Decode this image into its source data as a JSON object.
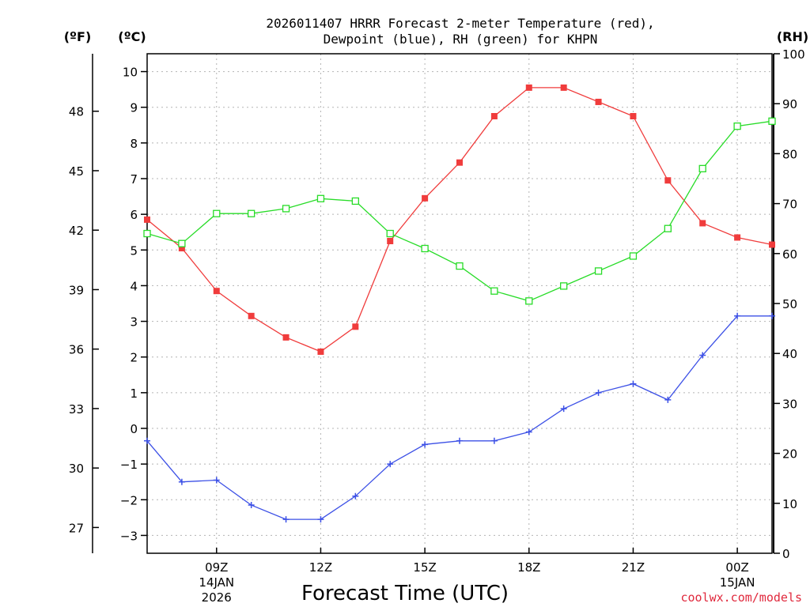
{
  "chart_data": {
    "type": "line",
    "title_line1": "2026011407 HRRR Forecast 2-meter Temperature (red),",
    "title_line2": "Dewpoint (blue), RH (green) for KHPN",
    "xlabel": "Forecast Time (UTC)",
    "credit": "coolwx.com/models",
    "unit_f": "(ºF)",
    "unit_c": "(ºC)",
    "unit_rh": "(RH)",
    "x_hours": [
      7,
      8,
      9,
      10,
      11,
      12,
      13,
      14,
      15,
      16,
      17,
      18,
      19,
      20,
      21,
      22,
      23,
      24,
      25
    ],
    "x_ticks": [
      {
        "hour": 9,
        "label": "09Z",
        "sub1": "14JAN",
        "sub2": "2026"
      },
      {
        "hour": 12,
        "label": "12Z",
        "sub1": "",
        "sub2": ""
      },
      {
        "hour": 15,
        "label": "15Z",
        "sub1": "",
        "sub2": ""
      },
      {
        "hour": 18,
        "label": "18Z",
        "sub1": "",
        "sub2": ""
      },
      {
        "hour": 21,
        "label": "21Z",
        "sub1": "",
        "sub2": ""
      },
      {
        "hour": 24,
        "label": "00Z",
        "sub1": "15JAN",
        "sub2": ""
      }
    ],
    "xlim": [
      7,
      25
    ],
    "c_range": [
      -3.5,
      10.5
    ],
    "c_ticks": [
      "10",
      "9",
      "8",
      "7",
      "6",
      "5",
      "4",
      "3",
      "2",
      "1",
      "0",
      "−1",
      "−2",
      "−3"
    ],
    "c_tick_values": [
      10,
      9,
      8,
      7,
      6,
      5,
      4,
      3,
      2,
      1,
      0,
      -1,
      -2,
      -3
    ],
    "f_ticks": [
      "48",
      "45",
      "42",
      "39",
      "36",
      "33",
      "30",
      "27"
    ],
    "f_tick_values": [
      48,
      45,
      42,
      39,
      36,
      33,
      30,
      27
    ],
    "rh_range": [
      0,
      100
    ],
    "rh_ticks": [
      "100",
      "90",
      "80",
      "70",
      "60",
      "50",
      "40",
      "30",
      "20",
      "10",
      "0"
    ],
    "rh_tick_values": [
      100,
      90,
      80,
      70,
      60,
      50,
      40,
      30,
      20,
      10,
      0
    ],
    "series": [
      {
        "name": "Temperature",
        "color": "#f03c3c",
        "marker": "filled-square",
        "values": [
          5.85,
          5.05,
          3.85,
          3.15,
          2.55,
          2.15,
          2.85,
          5.25,
          6.45,
          7.45,
          8.75,
          9.55,
          9.55,
          9.15,
          8.75,
          6.95,
          5.75,
          5.35,
          5.15
        ]
      },
      {
        "name": "Dewpoint",
        "color": "#3c50e6",
        "marker": "plus",
        "values": [
          -0.35,
          -1.5,
          -1.45,
          -2.15,
          -2.55,
          -2.55,
          -1.9,
          -1.0,
          -0.45,
          -0.35,
          -0.35,
          -0.1,
          0.55,
          1.0,
          1.25,
          0.8,
          2.05,
          3.15,
          3.15
        ]
      },
      {
        "name": "RH",
        "color": "#28dc28",
        "marker": "open-square",
        "values": [
          64,
          62,
          68,
          68,
          69,
          71,
          70.5,
          64,
          61,
          57.5,
          52.5,
          50.5,
          53.5,
          56.5,
          59.5,
          65,
          77,
          85.5,
          86.5
        ]
      }
    ]
  }
}
